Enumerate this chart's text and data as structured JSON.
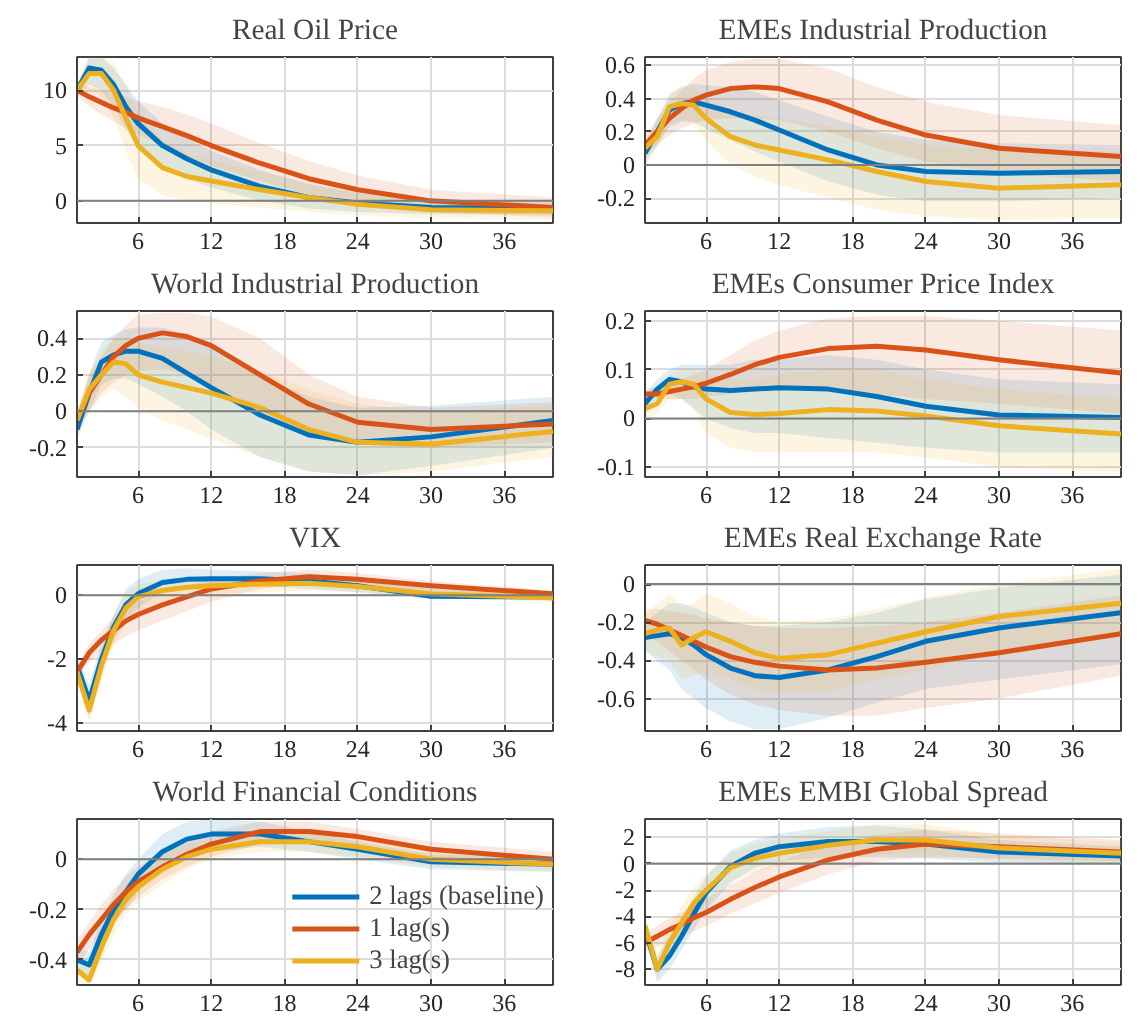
{
  "chart_data": [
    {
      "type": "line",
      "title": "Real Oil Price",
      "x": [
        1,
        2,
        3,
        4,
        5,
        6,
        8,
        10,
        12,
        16,
        20,
        24,
        30,
        40
      ],
      "xlim": [
        1,
        40
      ],
      "xticks": [
        6,
        12,
        18,
        24,
        30,
        36
      ],
      "ylim": [
        -2,
        13
      ],
      "yticks": [
        0,
        5,
        10
      ],
      "grid": true,
      "line_style": "solid",
      "ref_lines": [
        {
          "axis": "y",
          "value": 0,
          "color": "#808080"
        }
      ],
      "series": [
        {
          "color": "#0072bd",
          "values": [
            10,
            12,
            11.8,
            10.5,
            8.5,
            7,
            5,
            3.8,
            2.8,
            1.3,
            0.3,
            -0.2,
            -0.6,
            -0.7
          ],
          "lower": [
            9.5,
            10.5,
            10,
            8.5,
            6.5,
            5,
            3,
            2,
            1.2,
            0,
            -0.7,
            -1,
            -1.2,
            -1.3
          ],
          "upper": [
            10.5,
            13,
            13,
            12,
            10.5,
            9,
            7,
            5.7,
            4.5,
            2.8,
            1.5,
            0.7,
            0.1,
            -0.1
          ]
        },
        {
          "color": "#d95319",
          "values": [
            10,
            9.4,
            8.9,
            8.4,
            8,
            7.5,
            6.7,
            5.9,
            5,
            3.4,
            2,
            1,
            0,
            -0.6
          ],
          "lower": [
            9.5,
            8.5,
            7.8,
            7.2,
            6.5,
            6,
            5,
            4,
            3.2,
            1.8,
            0.6,
            -0.2,
            -1,
            -1.5
          ],
          "upper": [
            10.5,
            10.3,
            10,
            9.7,
            9.4,
            9,
            8.5,
            7.8,
            7,
            5.2,
            3.6,
            2.3,
            1,
            0.3
          ]
        },
        {
          "color": "#edb120",
          "values": [
            10,
            11.5,
            11.5,
            10,
            7.5,
            5,
            3,
            2.2,
            1.8,
            1,
            0.3,
            -0.3,
            -0.8,
            -0.9
          ],
          "lower": [
            9.5,
            10,
            9.5,
            7.5,
            4.5,
            2,
            0.5,
            0,
            -0.2,
            -0.6,
            -1,
            -1.3,
            -1.6,
            -1.7
          ],
          "upper": [
            10.5,
            13,
            13,
            12.5,
            10.5,
            8,
            5.5,
            4.3,
            3.7,
            2.6,
            1.6,
            0.8,
            0,
            -0.1
          ]
        }
      ]
    },
    {
      "type": "line",
      "title": "EMEs Industrial Production",
      "x": [
        1,
        2,
        3,
        4,
        5,
        6,
        8,
        10,
        12,
        16,
        20,
        24,
        30,
        40
      ],
      "xlim": [
        1,
        40
      ],
      "xticks": [
        6,
        12,
        18,
        24,
        30,
        36
      ],
      "ylim": [
        -0.35,
        0.65
      ],
      "yticks": [
        -0.2,
        0,
        0.2,
        0.4,
        0.6
      ],
      "grid": true,
      "line_style": "solid",
      "ref_lines": [
        {
          "axis": "y",
          "value": 0,
          "color": "#808080"
        }
      ],
      "series": [
        {
          "color": "#0072bd",
          "values": [
            0.07,
            0.2,
            0.33,
            0.37,
            0.38,
            0.36,
            0.32,
            0.27,
            0.21,
            0.09,
            0,
            -0.04,
            -0.05,
            -0.04
          ],
          "lower": [
            0,
            0.12,
            0.23,
            0.26,
            0.26,
            0.22,
            0.15,
            0.08,
            0.02,
            -0.1,
            -0.18,
            -0.22,
            -0.22,
            -0.2
          ],
          "upper": [
            0.12,
            0.28,
            0.42,
            0.47,
            0.49,
            0.48,
            0.47,
            0.44,
            0.39,
            0.29,
            0.2,
            0.15,
            0.13,
            0.12
          ]
        },
        {
          "color": "#d95319",
          "values": [
            0.12,
            0.2,
            0.28,
            0.34,
            0.39,
            0.42,
            0.46,
            0.47,
            0.46,
            0.38,
            0.27,
            0.18,
            0.1,
            0.05
          ],
          "lower": [
            0.05,
            0.12,
            0.18,
            0.22,
            0.25,
            0.27,
            0.28,
            0.28,
            0.27,
            0.2,
            0.1,
            0.02,
            -0.05,
            -0.1
          ],
          "upper": [
            0.18,
            0.28,
            0.38,
            0.45,
            0.52,
            0.57,
            0.62,
            0.64,
            0.64,
            0.58,
            0.47,
            0.38,
            0.3,
            0.24
          ]
        },
        {
          "color": "#edb120",
          "values": [
            0.1,
            0.17,
            0.35,
            0.37,
            0.36,
            0.28,
            0.17,
            0.12,
            0.09,
            0.03,
            -0.04,
            -0.1,
            -0.14,
            -0.12
          ],
          "lower": [
            0.03,
            0.1,
            0.25,
            0.27,
            0.25,
            0.15,
            0,
            -0.07,
            -0.12,
            -0.2,
            -0.27,
            -0.31,
            -0.33,
            -0.32
          ],
          "upper": [
            0.17,
            0.25,
            0.44,
            0.47,
            0.46,
            0.4,
            0.33,
            0.3,
            0.28,
            0.23,
            0.17,
            0.12,
            0.09,
            0.08
          ]
        }
      ]
    },
    {
      "type": "line",
      "title": "World Industrial Production",
      "x": [
        1,
        2,
        3,
        4,
        5,
        6,
        8,
        10,
        12,
        16,
        20,
        24,
        30,
        40
      ],
      "xlim": [
        1,
        40
      ],
      "xticks": [
        6,
        12,
        18,
        24,
        30,
        36
      ],
      "ylim": [
        -0.36,
        0.55
      ],
      "yticks": [
        -0.2,
        0,
        0.2,
        0.4
      ],
      "grid": true,
      "line_style": "solid",
      "ref_lines": [
        {
          "axis": "y",
          "value": 0,
          "color": "#808080"
        }
      ],
      "series": [
        {
          "color": "#0072bd",
          "values": [
            -0.1,
            0.1,
            0.27,
            0.31,
            0.33,
            0.33,
            0.29,
            0.21,
            0.13,
            -0.02,
            -0.13,
            -0.17,
            -0.14,
            -0.05
          ],
          "lower": [
            -0.15,
            0,
            0.15,
            0.18,
            0.18,
            0.15,
            0.08,
            0,
            -0.1,
            -0.25,
            -0.33,
            -0.35,
            -0.3,
            -0.2
          ],
          "upper": [
            -0.05,
            0.2,
            0.38,
            0.42,
            0.45,
            0.46,
            0.46,
            0.42,
            0.35,
            0.2,
            0.08,
            0.02,
            0.03,
            0.08
          ]
        },
        {
          "color": "#d95319",
          "values": [
            -0.05,
            0.1,
            0.2,
            0.3,
            0.36,
            0.4,
            0.43,
            0.41,
            0.36,
            0.2,
            0.04,
            -0.06,
            -0.1,
            -0.07
          ],
          "lower": [
            -0.1,
            0,
            0.1,
            0.16,
            0.2,
            0.22,
            0.23,
            0.2,
            0.14,
            0,
            -0.12,
            -0.18,
            -0.2,
            -0.17
          ],
          "upper": [
            0,
            0.2,
            0.3,
            0.4,
            0.47,
            0.53,
            0.54,
            0.54,
            0.52,
            0.4,
            0.2,
            0.08,
            0.02,
            0.05
          ]
        },
        {
          "color": "#edb120",
          "values": [
            -0.05,
            0.12,
            0.2,
            0.27,
            0.26,
            0.2,
            0.16,
            0.13,
            0.1,
            0.02,
            -0.1,
            -0.17,
            -0.18,
            -0.11
          ],
          "lower": [
            -0.1,
            0,
            0.08,
            0.12,
            0.08,
            0.02,
            -0.05,
            -0.1,
            -0.15,
            -0.25,
            -0.33,
            -0.35,
            -0.33,
            -0.25
          ],
          "upper": [
            0,
            0.22,
            0.33,
            0.4,
            0.4,
            0.37,
            0.35,
            0.33,
            0.3,
            0.22,
            0.12,
            0.04,
            0,
            0.03
          ]
        }
      ]
    },
    {
      "type": "line",
      "title": "EMEs Consumer Price Index",
      "x": [
        1,
        2,
        3,
        4,
        5,
        6,
        8,
        10,
        12,
        16,
        20,
        24,
        30,
        40
      ],
      "xlim": [
        1,
        40
      ],
      "xticks": [
        6,
        12,
        18,
        24,
        30,
        36
      ],
      "ylim": [
        -0.12,
        0.22
      ],
      "yticks": [
        -0.1,
        0,
        0.1,
        0.2
      ],
      "grid": true,
      "line_style": "solid",
      "ref_lines": [
        {
          "axis": "y",
          "value": 0,
          "color": "#808080"
        }
      ],
      "series": [
        {
          "color": "#0072bd",
          "values": [
            0.03,
            0.06,
            0.08,
            0.075,
            0.065,
            0.06,
            0.057,
            0.06,
            0.063,
            0.06,
            0.045,
            0.025,
            0.007,
            0.002
          ],
          "lower": [
            0.01,
            0.04,
            0.05,
            0.04,
            0.02,
            0,
            -0.02,
            -0.03,
            -0.03,
            -0.04,
            -0.05,
            -0.06,
            -0.07,
            -0.07
          ],
          "upper": [
            0.05,
            0.08,
            0.1,
            0.11,
            0.11,
            0.11,
            0.11,
            0.12,
            0.12,
            0.13,
            0.12,
            0.1,
            0.08,
            0.07
          ]
        },
        {
          "color": "#d95319",
          "values": [
            0.05,
            0.05,
            0.055,
            0.06,
            0.065,
            0.072,
            0.09,
            0.11,
            0.125,
            0.143,
            0.148,
            0.14,
            0.12,
            0.093
          ],
          "lower": [
            0.04,
            0.04,
            0.04,
            0.04,
            0.04,
            0.045,
            0.05,
            0.055,
            0.06,
            0.06,
            0.05,
            0.04,
            0.03,
            0.01
          ],
          "upper": [
            0.06,
            0.065,
            0.07,
            0.08,
            0.09,
            0.1,
            0.13,
            0.16,
            0.18,
            0.205,
            0.21,
            0.21,
            0.2,
            0.18
          ]
        },
        {
          "color": "#edb120",
          "values": [
            0.02,
            0.03,
            0.07,
            0.075,
            0.07,
            0.04,
            0.012,
            0.008,
            0.01,
            0.018,
            0.015,
            0.005,
            -0.015,
            -0.032
          ],
          "lower": [
            0,
            0.01,
            0.04,
            0.04,
            0.02,
            -0.03,
            -0.06,
            -0.07,
            -0.07,
            -0.07,
            -0.07,
            -0.08,
            -0.1,
            -0.11
          ],
          "upper": [
            0.04,
            0.05,
            0.09,
            0.1,
            0.1,
            0.09,
            0.08,
            0.08,
            0.09,
            0.1,
            0.1,
            0.08,
            0.06,
            0.04
          ]
        }
      ]
    },
    {
      "type": "line",
      "title": "VIX",
      "x": [
        1,
        2,
        3,
        4,
        5,
        6,
        8,
        10,
        12,
        16,
        20,
        24,
        30,
        40
      ],
      "xlim": [
        1,
        40
      ],
      "xticks": [
        6,
        12,
        18,
        24,
        30,
        36
      ],
      "ylim": [
        -4.25,
        0.95
      ],
      "yticks": [
        -4,
        -2,
        0
      ],
      "grid": true,
      "line_style": "solid",
      "ref_lines": [
        {
          "axis": "y",
          "value": 0,
          "color": "#808080"
        }
      ],
      "series": [
        {
          "color": "#0072bd",
          "values": [
            -2.2,
            -3.3,
            -2,
            -1,
            -0.3,
            0.05,
            0.4,
            0.5,
            0.52,
            0.52,
            0.45,
            0.3,
            -0.03,
            -0.05
          ],
          "lower": [
            -2.5,
            -3.8,
            -2.5,
            -1.4,
            -0.8,
            -0.4,
            0.1,
            0.25,
            0.3,
            0.3,
            0.2,
            0.1,
            -0.1,
            -0.15
          ],
          "upper": [
            -1.9,
            -2.8,
            -1.5,
            -0.6,
            0.2,
            0.5,
            0.8,
            0.85,
            0.8,
            0.75,
            0.7,
            0.5,
            0.2,
            0.05
          ]
        },
        {
          "color": "#d95319",
          "values": [
            -2.4,
            -1.8,
            -1.4,
            -1.1,
            -0.8,
            -0.6,
            -0.3,
            -0.05,
            0.2,
            0.45,
            0.58,
            0.5,
            0.3,
            0.05
          ],
          "lower": [
            -2.6,
            -2.1,
            -1.8,
            -1.5,
            -1.3,
            -1.1,
            -0.8,
            -0.5,
            -0.2,
            0.2,
            0.35,
            0.3,
            0.15,
            -0.05
          ],
          "upper": [
            -2.2,
            -1.5,
            -1.1,
            -0.7,
            -0.4,
            -0.2,
            0.1,
            0.3,
            0.5,
            0.7,
            0.8,
            0.7,
            0.45,
            0.15
          ]
        },
        {
          "color": "#edb120",
          "values": [
            -2.4,
            -3.6,
            -2.2,
            -1.1,
            -0.4,
            -0.05,
            0.15,
            0.25,
            0.3,
            0.35,
            0.38,
            0.28,
            0.05,
            -0.08
          ],
          "lower": [
            -2.7,
            -4,
            -2.7,
            -1.6,
            -0.9,
            -0.5,
            -0.2,
            -0.05,
            0.05,
            0.1,
            0.15,
            0.1,
            -0.1,
            -0.2
          ],
          "upper": [
            -2.1,
            -3.2,
            -1.7,
            -0.6,
            0.1,
            0.35,
            0.5,
            0.55,
            0.55,
            0.6,
            0.6,
            0.45,
            0.2,
            0.05
          ]
        }
      ]
    },
    {
      "type": "line",
      "title": "EMEs Real Exchange Rate",
      "x": [
        1,
        2,
        3,
        4,
        5,
        6,
        8,
        10,
        12,
        16,
        20,
        24,
        30,
        40
      ],
      "xlim": [
        1,
        40
      ],
      "xticks": [
        6,
        12,
        18,
        24,
        30,
        36
      ],
      "ylim": [
        -0.77,
        0.1
      ],
      "yticks": [
        -0.6,
        -0.4,
        -0.2,
        0
      ],
      "grid": true,
      "line_style": "solid",
      "ref_lines": [
        {
          "axis": "y",
          "value": 0,
          "color": "#808080"
        }
      ],
      "series": [
        {
          "color": "#0072bd",
          "values": [
            -0.28,
            -0.27,
            -0.26,
            -0.28,
            -0.32,
            -0.37,
            -0.44,
            -0.48,
            -0.49,
            -0.45,
            -0.38,
            -0.3,
            -0.23,
            -0.15
          ],
          "lower": [
            -0.35,
            -0.4,
            -0.45,
            -0.55,
            -0.6,
            -0.65,
            -0.72,
            -0.76,
            -0.76,
            -0.7,
            -0.62,
            -0.55,
            -0.5,
            -0.42
          ],
          "upper": [
            -0.2,
            -0.15,
            -0.1,
            -0.1,
            -0.12,
            -0.15,
            -0.2,
            -0.22,
            -0.22,
            -0.2,
            -0.15,
            -0.08,
            -0.02,
            0.05
          ]
        },
        {
          "color": "#d95319",
          "values": [
            -0.19,
            -0.21,
            -0.24,
            -0.27,
            -0.3,
            -0.33,
            -0.38,
            -0.41,
            -0.43,
            -0.45,
            -0.44,
            -0.41,
            -0.36,
            -0.26
          ],
          "lower": [
            -0.25,
            -0.3,
            -0.35,
            -0.4,
            -0.45,
            -0.5,
            -0.58,
            -0.63,
            -0.66,
            -0.69,
            -0.69,
            -0.65,
            -0.6,
            -0.48
          ],
          "upper": [
            -0.13,
            -0.13,
            -0.14,
            -0.15,
            -0.16,
            -0.18,
            -0.2,
            -0.22,
            -0.23,
            -0.23,
            -0.22,
            -0.2,
            -0.15,
            -0.06
          ]
        },
        {
          "color": "#edb120",
          "values": [
            -0.26,
            -0.24,
            -0.23,
            -0.32,
            -0.28,
            -0.25,
            -0.3,
            -0.36,
            -0.39,
            -0.37,
            -0.31,
            -0.25,
            -0.17,
            -0.1
          ],
          "lower": [
            -0.35,
            -0.38,
            -0.4,
            -0.5,
            -0.48,
            -0.45,
            -0.5,
            -0.55,
            -0.57,
            -0.56,
            -0.5,
            -0.45,
            -0.35,
            -0.28
          ],
          "upper": [
            -0.17,
            -0.1,
            -0.05,
            -0.12,
            -0.1,
            -0.05,
            -0.1,
            -0.17,
            -0.2,
            -0.18,
            -0.13,
            -0.07,
            0,
            0.08
          ]
        }
      ]
    },
    {
      "type": "line",
      "title": "World Financial Conditions",
      "x": [
        1,
        2,
        3,
        4,
        5,
        6,
        8,
        10,
        12,
        16,
        20,
        24,
        30,
        40
      ],
      "xlim": [
        1,
        40
      ],
      "xticks": [
        6,
        12,
        18,
        24,
        30,
        36
      ],
      "ylim": [
        -0.5,
        0.16
      ],
      "yticks": [
        -0.4,
        -0.2,
        0
      ],
      "grid": true,
      "line_style": "solid",
      "legend": "bottom right",
      "ref_lines": [
        {
          "axis": "y",
          "value": 0,
          "color": "#808080"
        }
      ],
      "series": [
        {
          "name": "2 lags (baseline)",
          "color": "#0072bd",
          "values": [
            -0.4,
            -0.42,
            -0.3,
            -0.2,
            -0.13,
            -0.06,
            0.03,
            0.08,
            0.1,
            0.1,
            0.07,
            0.04,
            -0.01,
            -0.02
          ],
          "lower": [
            -0.45,
            -0.47,
            -0.36,
            -0.26,
            -0.2,
            -0.13,
            -0.04,
            0,
            0.03,
            0.05,
            0.03,
            0,
            -0.04,
            -0.05
          ],
          "upper": [
            -0.35,
            -0.37,
            -0.24,
            -0.14,
            -0.06,
            0,
            0.1,
            0.15,
            0.16,
            0.15,
            0.11,
            0.07,
            0.02,
            0.01
          ]
        },
        {
          "name": "1 lag(s)",
          "color": "#d95319",
          "values": [
            -0.37,
            -0.3,
            -0.24,
            -0.18,
            -0.13,
            -0.09,
            -0.03,
            0.02,
            0.06,
            0.11,
            0.11,
            0.09,
            0.04,
            0
          ],
          "lower": [
            -0.42,
            -0.36,
            -0.3,
            -0.24,
            -0.2,
            -0.15,
            -0.08,
            -0.03,
            0.01,
            0.06,
            0.07,
            0.06,
            0.01,
            -0.03
          ],
          "upper": [
            -0.32,
            -0.25,
            -0.18,
            -0.12,
            -0.07,
            -0.03,
            0.02,
            0.07,
            0.11,
            0.15,
            0.15,
            0.12,
            0.07,
            0.03
          ]
        },
        {
          "name": "3 lag(s)",
          "color": "#edb120",
          "values": [
            -0.44,
            -0.48,
            -0.35,
            -0.24,
            -0.16,
            -0.11,
            -0.04,
            0.01,
            0.04,
            0.07,
            0.07,
            0.05,
            0,
            -0.02
          ],
          "lower": [
            -0.49,
            -0.5,
            -0.41,
            -0.3,
            -0.22,
            -0.17,
            -0.1,
            -0.04,
            0,
            0.03,
            0.03,
            0.01,
            -0.03,
            -0.05
          ],
          "upper": [
            -0.39,
            -0.43,
            -0.29,
            -0.18,
            -0.1,
            -0.05,
            0.02,
            0.06,
            0.08,
            0.11,
            0.11,
            0.09,
            0.03,
            0.01
          ]
        }
      ]
    },
    {
      "type": "line",
      "title": "EMEs EMBI Global Spread",
      "x": [
        1,
        2,
        3,
        4,
        5,
        6,
        8,
        10,
        12,
        16,
        20,
        24,
        30,
        40
      ],
      "xlim": [
        1,
        40
      ],
      "xticks": [
        6,
        12,
        18,
        24,
        30,
        36
      ],
      "ylim": [
        -9.2,
        3.4
      ],
      "yticks": [
        -8,
        -6,
        -4,
        -2,
        0,
        2
      ],
      "grid": true,
      "line_style": "solid",
      "ref_lines": [
        {
          "axis": "y",
          "value": 0,
          "color": "#808080"
        }
      ],
      "series": [
        {
          "color": "#0072bd",
          "values": [
            -5,
            -8,
            -7,
            -5.5,
            -3.8,
            -2.2,
            -0.2,
            0.8,
            1.3,
            1.7,
            1.7,
            1.5,
            0.9,
            0.6
          ],
          "lower": [
            -5.5,
            -9,
            -8,
            -6.5,
            -5,
            -3.5,
            -1.5,
            -0.3,
            0.2,
            0.5,
            0.5,
            0.4,
            0.1,
            0
          ],
          "upper": [
            -4.5,
            -7,
            -5.5,
            -4,
            -2.5,
            -1,
            1,
            1.8,
            2.3,
            2.8,
            2.9,
            2.6,
            1.8,
            1.3
          ]
        },
        {
          "color": "#d95319",
          "values": [
            -6,
            -5.5,
            -5,
            -4.6,
            -4.1,
            -3.7,
            -2.7,
            -1.8,
            -1,
            0.3,
            1.1,
            1.5,
            1.3,
            0.9
          ],
          "lower": [
            -6.7,
            -6.3,
            -5.9,
            -5.5,
            -5.1,
            -4.7,
            -3.8,
            -3,
            -2.2,
            -0.8,
            0.2,
            0.5,
            0.4,
            0.2
          ],
          "upper": [
            -5.3,
            -4.7,
            -4.1,
            -3.7,
            -3.2,
            -2.7,
            -1.6,
            -0.6,
            0.2,
            1.5,
            2.2,
            2.6,
            2.3,
            1.8
          ]
        },
        {
          "color": "#edb120",
          "values": [
            -4.7,
            -8,
            -6,
            -4.5,
            -3,
            -2,
            -0.3,
            0.4,
            0.8,
            1.4,
            1.8,
            1.8,
            1.2,
            0.8
          ],
          "lower": [
            -5.3,
            -8.8,
            -7,
            -5.5,
            -4,
            -3,
            -1.3,
            -0.6,
            -0.2,
            0.4,
            0.7,
            0.7,
            0.3,
            0
          ],
          "upper": [
            -4.1,
            -7,
            -4.8,
            -3.2,
            -1.8,
            -0.8,
            0.8,
            1.5,
            1.9,
            2.5,
            3,
            3,
            2.2,
            1.6
          ]
        }
      ]
    }
  ]
}
